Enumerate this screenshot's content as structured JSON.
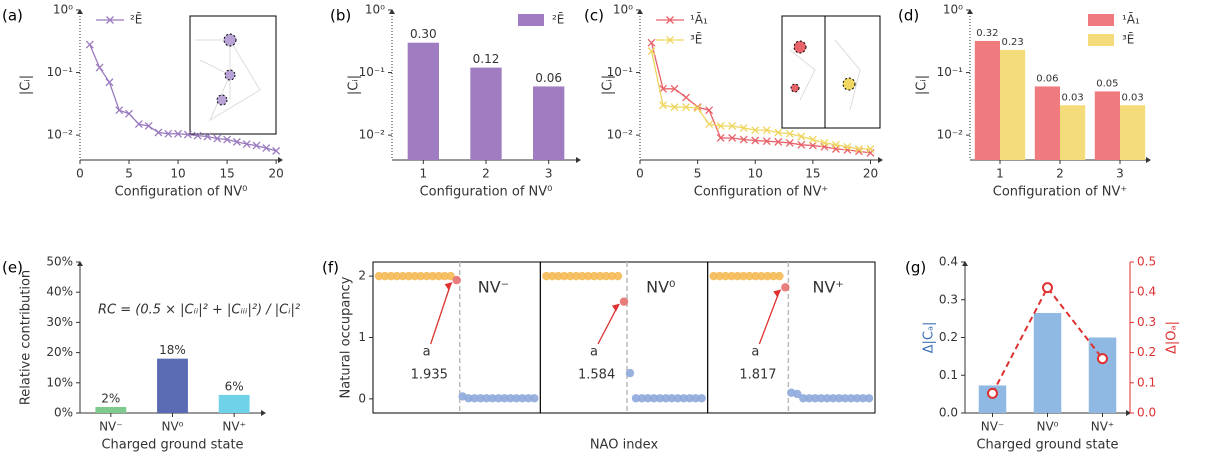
{
  "chart_data": [
    {
      "panel_label": "(a)",
      "type": "line",
      "xlabel": "Configuration of NV⁰",
      "ylabel": "|Cᵢ|",
      "log": true,
      "xlim": [
        0,
        20.6
      ],
      "ylim": [
        0.004,
        1
      ],
      "xticks": [
        0,
        5,
        10,
        15,
        20
      ],
      "yticks": [
        {
          "value": 0.01,
          "label": "10⁻²"
        },
        {
          "value": 0.1,
          "label": "10⁻¹"
        },
        {
          "value": 1,
          "label": "10⁰"
        }
      ],
      "legend": "upper left",
      "x": [
        1,
        2,
        3,
        4,
        5,
        6,
        7,
        8,
        9,
        10,
        11,
        12,
        13,
        14,
        15,
        16,
        17,
        18,
        19,
        20
      ],
      "series": [
        {
          "name": "²Ē",
          "color": "#9b7bbf",
          "values": [
            0.28,
            0.12,
            0.07,
            0.025,
            0.022,
            0.015,
            0.014,
            0.011,
            0.0105,
            0.0105,
            0.0102,
            0.0098,
            0.0095,
            0.0088,
            0.0085,
            0.0078,
            0.0072,
            0.0068,
            0.0062,
            0.0056
          ]
        }
      ]
    },
    {
      "panel_label": "(b)",
      "type": "bar",
      "xlabel": "Configuration of NV⁰",
      "ylabel": "|Cᵢ|",
      "log": true,
      "ylim": [
        0.004,
        1
      ],
      "yticks": [
        {
          "value": 0.01,
          "label": "10⁻²"
        },
        {
          "value": 0.1,
          "label": "10⁻¹"
        },
        {
          "value": 1,
          "label": "10⁰"
        }
      ],
      "legend": "upper right",
      "categories": [
        "1",
        "2",
        "3"
      ],
      "series": [
        {
          "name": "²Ē",
          "color": "#a07cc0",
          "values": [
            0.3,
            0.12,
            0.06
          ],
          "value_labels": [
            "0.30",
            "0.12",
            "0.06"
          ]
        }
      ]
    },
    {
      "panel_label": "(c)",
      "type": "line",
      "xlabel": "Configuration of NV⁺",
      "ylabel": "|Cᵢ|",
      "log": true,
      "xlim": [
        0,
        21
      ],
      "ylim": [
        0.004,
        1
      ],
      "xticks": [
        0,
        5,
        10,
        15,
        20
      ],
      "yticks": [
        {
          "value": 0.01,
          "label": "10⁻²"
        },
        {
          "value": 0.1,
          "label": "10⁻¹"
        },
        {
          "value": 1,
          "label": "10⁰"
        }
      ],
      "legend": "upper left",
      "x": [
        1,
        2,
        3,
        4,
        5,
        6,
        7,
        8,
        9,
        10,
        11,
        12,
        13,
        14,
        15,
        16,
        17,
        18,
        19,
        20
      ],
      "series": [
        {
          "name": "¹Ā₁",
          "color": "#e8626a",
          "values": [
            0.3,
            0.055,
            0.055,
            0.04,
            0.028,
            0.025,
            0.009,
            0.009,
            0.0085,
            0.0082,
            0.008,
            0.0078,
            0.0075,
            0.007,
            0.0068,
            0.0065,
            0.006,
            0.0058,
            0.0055,
            0.0052
          ]
        },
        {
          "name": "³Ē",
          "color": "#eed660",
          "values": [
            0.22,
            0.03,
            0.028,
            0.028,
            0.027,
            0.015,
            0.014,
            0.014,
            0.013,
            0.012,
            0.012,
            0.011,
            0.0105,
            0.0095,
            0.0085,
            0.0075,
            0.007,
            0.0065,
            0.006,
            0.006
          ]
        }
      ]
    },
    {
      "panel_label": "(d)",
      "type": "bar",
      "xlabel": "Configuration of NV⁺",
      "ylabel": "|Cᵢ|",
      "log": true,
      "ylim": [
        0.004,
        1
      ],
      "yticks": [
        {
          "value": 0.01,
          "label": "10⁻²"
        },
        {
          "value": 0.1,
          "label": "10⁻¹"
        },
        {
          "value": 1,
          "label": "10⁰"
        }
      ],
      "legend": "upper right",
      "categories": [
        "1",
        "2",
        "3"
      ],
      "series": [
        {
          "name": "¹Ā₁",
          "color": "#f07b7e",
          "values": [
            0.32,
            0.06,
            0.05
          ]
        },
        {
          "name": "³Ē",
          "color": "#f5dc7a",
          "values": [
            0.23,
            0.03,
            0.03
          ]
        }
      ]
    },
    {
      "panel_label": "(e)",
      "type": "bar",
      "xlabel": "Charged ground state",
      "ylabel": "Relative contribution",
      "annotation": "RC = (0.5 × |Cᵢᵢ|² + |Cᵢᵢᵢ|²) / |Cᵢ|²",
      "ylim": [
        0,
        50
      ],
      "yticks": [
        {
          "value": 0,
          "label": "0%"
        },
        {
          "value": 10,
          "label": "10%"
        },
        {
          "value": 20,
          "label": "20%"
        },
        {
          "value": 30,
          "label": "30%"
        },
        {
          "value": 40,
          "label": "40%"
        },
        {
          "value": 50,
          "label": "50%"
        }
      ],
      "categories": [
        "NV⁻",
        "NV⁰",
        "NV⁺"
      ],
      "series": [
        {
          "colors": [
            "#7dcb8c",
            "#5a6ab3",
            "#6fd2e8"
          ],
          "values": [
            2,
            18,
            6
          ],
          "value_labels": [
            "2%",
            "18%",
            "6%"
          ]
        }
      ]
    },
    {
      "panel_label": "(f)",
      "type": "panels",
      "xlabel": "NAO index",
      "ylabel": "Natural occupancy",
      "xlim": [
        0,
        28
      ],
      "ylim": [
        -0.23,
        2.23
      ],
      "yticks": [
        0,
        1,
        2
      ],
      "panels": [
        {
          "label": "NV⁻",
          "annotation": "a",
          "series": [
            {
              "color": "#f5b955",
              "x": [
                1,
                2,
                3,
                4,
                5,
                6,
                7,
                8,
                9,
                10,
                11,
                12,
                13
              ],
              "values": [
                2,
                2,
                2,
                2,
                2,
                2,
                2,
                2,
                2,
                2,
                2,
                2,
                2
              ]
            },
            {
              "color": "#e8706f",
              "x": [
                14
              ],
              "values": [
                1.935
              ]
            },
            {
              "color": "#8ea9dc",
              "x": [
                15,
                16,
                17,
                18,
                19,
                20,
                21,
                22,
                23,
                24,
                25,
                26,
                27
              ],
              "values": [
                0.04,
                0.01,
                0.01,
                0.01,
                0.01,
                0.01,
                0.01,
                0.01,
                0.01,
                0.01,
                0.01,
                0.01,
                0.01
              ]
            }
          ]
        },
        {
          "label": "NV⁰",
          "annotation": "a",
          "series": [
            {
              "color": "#f5b955",
              "x": [
                1,
                2,
                3,
                4,
                5,
                6,
                7,
                8,
                9,
                10,
                11,
                12,
                13
              ],
              "values": [
                2,
                2,
                2,
                2,
                2,
                2,
                2,
                2,
                2,
                2,
                2,
                2,
                2
              ]
            },
            {
              "color": "#e8706f",
              "x": [
                14
              ],
              "values": [
                1.584
              ]
            },
            {
              "color": "#8ea9dc",
              "x": [
                15,
                16,
                17,
                18,
                19,
                20,
                21,
                22,
                23,
                24,
                25,
                26,
                27
              ],
              "values": [
                0.42,
                0.01,
                0.01,
                0.01,
                0.01,
                0.01,
                0.01,
                0.01,
                0.01,
                0.01,
                0.01,
                0.01,
                0.01
              ]
            }
          ]
        },
        {
          "label": "NV⁺",
          "annotation": "a",
          "series": [
            {
              "color": "#f5b955",
              "x": [
                1,
                2,
                3,
                4,
                5,
                6,
                7,
                8,
                9,
                10,
                11,
                12
              ],
              "values": [
                2,
                2,
                2,
                2,
                2,
                2,
                2,
                2,
                2,
                2,
                2,
                2
              ]
            },
            {
              "color": "#e8706f",
              "x": [
                13
              ],
              "values": [
                1.817
              ]
            },
            {
              "color": "#8ea9dc",
              "x": [
                14,
                15,
                16,
                17,
                18,
                19,
                20,
                21,
                22,
                23,
                24,
                25,
                26,
                27
              ],
              "values": [
                0.1,
                0.08,
                0.01,
                0.01,
                0.01,
                0.01,
                0.01,
                0.01,
                0.01,
                0.01,
                0.01,
                0.01,
                0.01,
                0.01
              ]
            }
          ]
        }
      ]
    },
    {
      "panel_label": "(g)",
      "type": "bar",
      "xlabel": "Charged ground state",
      "ylabel": "Δ|Cₐ|",
      "y2label": "Δ|Oₐ|",
      "ylim": [
        0,
        0.4
      ],
      "yticks": [
        {
          "value": 0,
          "label": "0.0"
        },
        0.1,
        0.2,
        0.3,
        0.4
      ],
      "y2lim": [
        0,
        0.5
      ],
      "y2ticks": [
        {
          "value": 0,
          "label": "0.0"
        },
        0.1,
        0.2,
        0.3,
        0.4,
        0.5
      ],
      "categories": [
        "NV⁻",
        "NV⁰",
        "NV⁺"
      ],
      "series": [
        {
          "color": "#8fb8e3",
          "values": [
            0.073,
            0.265,
            0.2
          ]
        },
        {
          "color": "#e03030",
          "axis": "y2",
          "values": [
            0.065,
            0.415,
            0.18
          ]
        }
      ]
    }
  ]
}
